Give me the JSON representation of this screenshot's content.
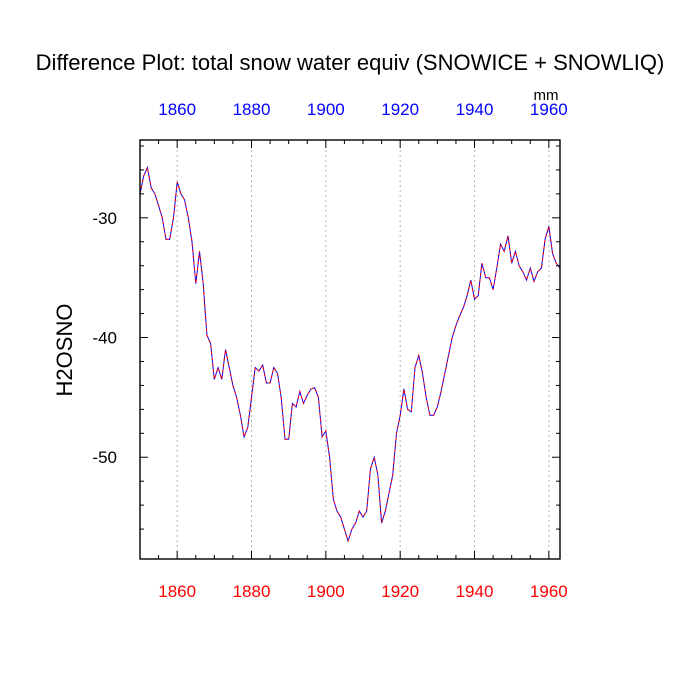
{
  "chart_data": {
    "type": "line",
    "title": "Difference Plot: total snow water equiv (SNOWICE + SNOWLIQ)",
    "units": "mm",
    "xlabel": "",
    "ylabel": "H2OSNO",
    "xlim": [
      1850,
      1963
    ],
    "ylim": [
      -58.5,
      -23.5
    ],
    "x_ticks": [
      1860,
      1880,
      1900,
      1920,
      1940,
      1960
    ],
    "x_tick_labels": [
      "1860",
      "1880",
      "1900",
      "1920",
      "1940",
      "1960"
    ],
    "y_ticks": [
      -30,
      -40,
      -50
    ],
    "y_tick_labels": [
      "-30",
      "-40",
      "-50"
    ],
    "bottom_axis_color": "#ff0000",
    "top_axis_color": "#0000ff",
    "grid": "vertical dashed at major x ticks",
    "series": [
      {
        "name": "SNOWICE + SNOWLIQ difference",
        "colors": [
          "#0000ff",
          "#ff0000"
        ],
        "style": "dashed red over solid blue",
        "x": [
          1850,
          1851,
          1852,
          1853,
          1854,
          1855,
          1856,
          1857,
          1858,
          1859,
          1860,
          1861,
          1862,
          1863,
          1864,
          1865,
          1866,
          1867,
          1868,
          1869,
          1870,
          1871,
          1872,
          1873,
          1874,
          1875,
          1876,
          1877,
          1878,
          1879,
          1880,
          1881,
          1882,
          1883,
          1884,
          1885,
          1886,
          1887,
          1888,
          1889,
          1890,
          1891,
          1892,
          1893,
          1894,
          1895,
          1896,
          1897,
          1898,
          1899,
          1900,
          1901,
          1902,
          1903,
          1904,
          1905,
          1906,
          1907,
          1908,
          1909,
          1910,
          1911,
          1912,
          1913,
          1914,
          1915,
          1916,
          1917,
          1918,
          1919,
          1920,
          1921,
          1922,
          1923,
          1924,
          1925,
          1926,
          1927,
          1928,
          1929,
          1930,
          1931,
          1932,
          1933,
          1934,
          1935,
          1936,
          1937,
          1938,
          1939,
          1940,
          1941,
          1942,
          1943,
          1944,
          1945,
          1946,
          1947,
          1948,
          1949,
          1950,
          1951,
          1952,
          1953,
          1954,
          1955,
          1956,
          1957,
          1958,
          1959,
          1960,
          1961,
          1962,
          1963
        ],
        "values": [
          -28.0,
          -26.5,
          -25.8,
          -27.5,
          -28.0,
          -29.0,
          -30.0,
          -31.8,
          -31.8,
          -30.0,
          -27.0,
          -28.0,
          -28.5,
          -30.0,
          -32.0,
          -35.5,
          -32.8,
          -35.5,
          -39.8,
          -40.5,
          -43.5,
          -42.5,
          -43.5,
          -41.0,
          -42.5,
          -44.0,
          -45.0,
          -46.5,
          -48.3,
          -47.5,
          -45.0,
          -42.5,
          -42.8,
          -42.3,
          -43.8,
          -43.8,
          -42.5,
          -43.0,
          -45.0,
          -48.5,
          -48.5,
          -45.5,
          -45.8,
          -44.5,
          -45.5,
          -44.8,
          -44.3,
          -44.2,
          -45.0,
          -48.3,
          -47.8,
          -50.0,
          -53.5,
          -54.5,
          -55.0,
          -56.0,
          -57.0,
          -56.0,
          -55.5,
          -54.5,
          -55.0,
          -54.5,
          -51.0,
          -50.0,
          -51.5,
          -55.5,
          -54.5,
          -53.0,
          -51.5,
          -48.0,
          -46.5,
          -44.3,
          -46.0,
          -46.2,
          -42.5,
          -41.5,
          -43.0,
          -45.0,
          -46.5,
          -46.5,
          -45.8,
          -44.5,
          -43.0,
          -41.5,
          -40.0,
          -39.0,
          -38.2,
          -37.5,
          -36.5,
          -35.2,
          -36.8,
          -36.5,
          -33.8,
          -35.0,
          -35.0,
          -36.0,
          -34.2,
          -32.2,
          -32.8,
          -31.5,
          -33.8,
          -32.8,
          -34.0,
          -34.5,
          -35.2,
          -34.2,
          -35.3,
          -34.5,
          -34.2,
          -31.8,
          -30.7,
          -33.0,
          -33.8,
          -34.2
        ]
      }
    ]
  }
}
